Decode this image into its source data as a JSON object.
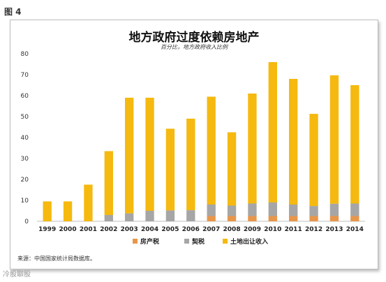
{
  "figure_label": "图 4",
  "source_note": "来源：中国国家统计局数据库。",
  "watermark": "冷股聊股",
  "colors": {
    "property_tax": "#e8964a",
    "deed_tax": "#a6a6a6",
    "land_sales": "#f5b90f"
  },
  "chart_data": {
    "type": "bar",
    "stacked": true,
    "title": "地方政府过度依赖房地产",
    "subtitle": "百分比，地方政府收入比例",
    "ylim": [
      0,
      80
    ],
    "yticks": [
      0,
      10,
      20,
      30,
      40,
      50,
      60,
      70,
      80
    ],
    "grid": false,
    "legend_position": "bottom",
    "categories": [
      "1999",
      "2000",
      "2001",
      "2002",
      "2003",
      "2004",
      "2005",
      "2006",
      "2007",
      "2008",
      "2009",
      "2010",
      "2011",
      "2012",
      "2013",
      "2014"
    ],
    "series": [
      {
        "name": "房产税",
        "values": [
          0,
          0,
          0,
          0,
          0,
          0,
          0,
          0,
          2.5,
          2.5,
          2.5,
          2.5,
          2.5,
          2.5,
          2.5,
          2.5
        ]
      },
      {
        "name": "契税",
        "values": [
          0,
          0,
          0,
          3,
          3.8,
          5,
          5.2,
          5.3,
          5.5,
          5,
          6,
          6.5,
          5.5,
          4.8,
          5.9,
          6
        ]
      },
      {
        "name": "土地出让收入",
        "values": [
          9.5,
          9.5,
          17.5,
          30.5,
          55.2,
          54,
          39,
          43.7,
          51.5,
          35,
          52.5,
          67,
          60,
          44,
          61.3,
          56.5
        ]
      }
    ]
  }
}
